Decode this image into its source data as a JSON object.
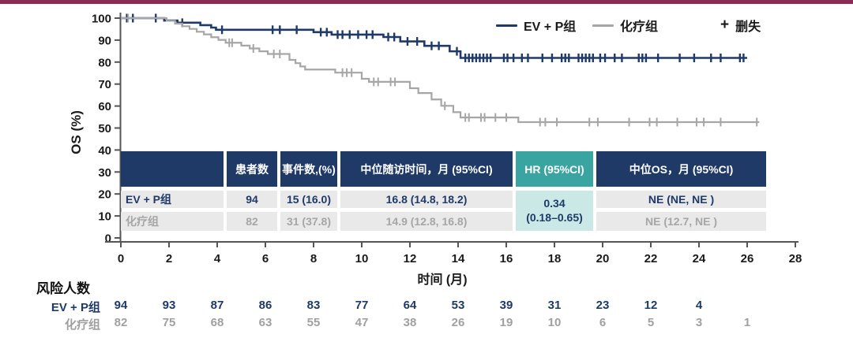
{
  "accent_bar_color": "#8b2a55",
  "colors": {
    "evp": "#1f3a68",
    "chemo": "#a6a6a6",
    "teal_header": "#3aa5a0",
    "teal_cell": "#c9e8e6",
    "navy_header": "#1f3a66",
    "row_bg": "#e9e9e9",
    "axis": "#555555",
    "text": "#1a1a1a"
  },
  "chart_data": {
    "type": "line",
    "subtype": "kaplan-meier-step",
    "title": "",
    "ylabel": "OS (%)",
    "xlabel": "时间 (月)",
    "xlim": [
      0,
      28
    ],
    "ylim": [
      0,
      100
    ],
    "xticks": [
      0,
      2,
      4,
      6,
      8,
      10,
      12,
      14,
      16,
      18,
      20,
      22,
      24,
      26,
      28
    ],
    "yticks": [
      0,
      10,
      20,
      30,
      40,
      50,
      60,
      70,
      80,
      90,
      100
    ],
    "grid": false,
    "legend": {
      "position": "top-right",
      "items": [
        {
          "label": "EV + P组",
          "type": "line",
          "color": "#1f3a68"
        },
        {
          "label": "化疗组",
          "type": "line",
          "color": "#a6a6a6"
        },
        {
          "label": "删失",
          "type": "plus",
          "symbol": "+",
          "color": "#1a1a1a"
        }
      ]
    },
    "series": [
      {
        "name": "EV + P组",
        "color": "#1f3a68",
        "steps": [
          [
            0,
            100
          ],
          [
            1.8,
            98.9
          ],
          [
            2.35,
            97.9
          ],
          [
            3.3,
            96.8
          ],
          [
            3.75,
            95.7
          ],
          [
            3.95,
            94.7
          ],
          [
            8.0,
            93.6
          ],
          [
            8.75,
            92.5
          ],
          [
            10.9,
            91.4
          ],
          [
            11.6,
            89.4
          ],
          [
            12.6,
            87.4
          ],
          [
            13.65,
            84.9
          ],
          [
            14.1,
            81.9
          ]
        ],
        "end": 26.0,
        "censor_months": [
          0.25,
          0.5,
          1.45,
          2.55,
          4.2,
          6.3,
          6.6,
          7.3,
          8.3,
          8.55,
          9.0,
          9.2,
          9.5,
          9.85,
          10.2,
          10.45,
          11.1,
          11.35,
          11.9,
          12.3,
          12.9,
          13.2,
          13.95,
          14.3,
          14.45,
          14.6,
          14.75,
          14.9,
          15.05,
          15.2,
          15.35,
          15.9,
          16.05,
          16.3,
          16.65,
          16.9,
          17.5,
          17.9,
          18.3,
          18.45,
          18.6,
          19.0,
          19.15,
          19.3,
          19.45,
          19.6,
          19.9,
          20.1,
          20.5,
          20.8,
          21.5,
          21.65,
          21.8,
          22.3,
          23.2,
          23.8,
          24.5,
          24.9,
          25.7,
          25.85
        ]
      },
      {
        "name": "化疗组",
        "color": "#a6a6a6",
        "steps": [
          [
            0,
            100
          ],
          [
            1.9,
            98.8
          ],
          [
            2.25,
            97.5
          ],
          [
            2.55,
            96.3
          ],
          [
            2.85,
            95.1
          ],
          [
            3.15,
            93.8
          ],
          [
            3.45,
            92.6
          ],
          [
            3.75,
            91.3
          ],
          [
            4.05,
            90.1
          ],
          [
            4.35,
            88.8
          ],
          [
            5.0,
            87.5
          ],
          [
            5.35,
            86.2
          ],
          [
            5.75,
            84.9
          ],
          [
            6.1,
            83.7
          ],
          [
            7.0,
            81.0
          ],
          [
            7.25,
            79.5
          ],
          [
            7.45,
            78.0
          ],
          [
            7.65,
            76.6
          ],
          [
            8.9,
            75.2
          ],
          [
            10.0,
            72.4
          ],
          [
            10.3,
            71.0
          ],
          [
            12.0,
            68.1
          ],
          [
            12.35,
            65.9
          ],
          [
            12.9,
            63.0
          ],
          [
            13.3,
            60.1
          ],
          [
            13.8,
            57.2
          ],
          [
            14.1,
            54.8
          ],
          [
            16.5,
            52.7
          ]
        ],
        "end": 26.5,
        "censor_months": [
          0.3,
          4.5,
          4.62,
          5.5,
          6.35,
          6.6,
          9.2,
          9.38,
          9.58,
          10.5,
          10.68,
          11.2,
          11.38,
          13.45,
          14.3,
          14.45,
          14.95,
          15.1,
          15.55,
          16.0,
          17.4,
          17.62,
          18.1,
          19.45,
          19.8,
          21.1,
          21.95,
          22.25,
          23.1,
          23.9,
          24.2,
          24.9,
          26.4
        ]
      }
    ]
  },
  "summary_table": {
    "headers": [
      "",
      "患者数",
      "事件数,(%)",
      "中位随访时间，月 (95%CI)",
      "HR (95%CI)",
      "中位OS，月 (95%CI)"
    ],
    "rows": [
      {
        "label": "EV + P组",
        "patients": "94",
        "events": "15 (16.0)",
        "followup": "16.8 (14.8, 18.2)",
        "median_os": "NE (NE, NE )"
      },
      {
        "label": "化疗组",
        "patients": "82",
        "events": "31 (37.8)",
        "followup": "14.9 (12.8, 16.8)",
        "median_os": "NE (12.7, NE )"
      }
    ],
    "hr_value": "0.34",
    "hr_ci": "(0.18–0.65)"
  },
  "risk_table": {
    "title": "风险人数",
    "rows": [
      {
        "label": "EV + P组",
        "color": "#1f3a68",
        "values": [
          94,
          93,
          87,
          86,
          83,
          77,
          64,
          53,
          39,
          31,
          23,
          12,
          4
        ]
      },
      {
        "label": "化疗组",
        "color": "#a0a0a0",
        "values": [
          82,
          75,
          68,
          63,
          55,
          47,
          38,
          26,
          19,
          10,
          6,
          5,
          3,
          1
        ]
      }
    ]
  }
}
